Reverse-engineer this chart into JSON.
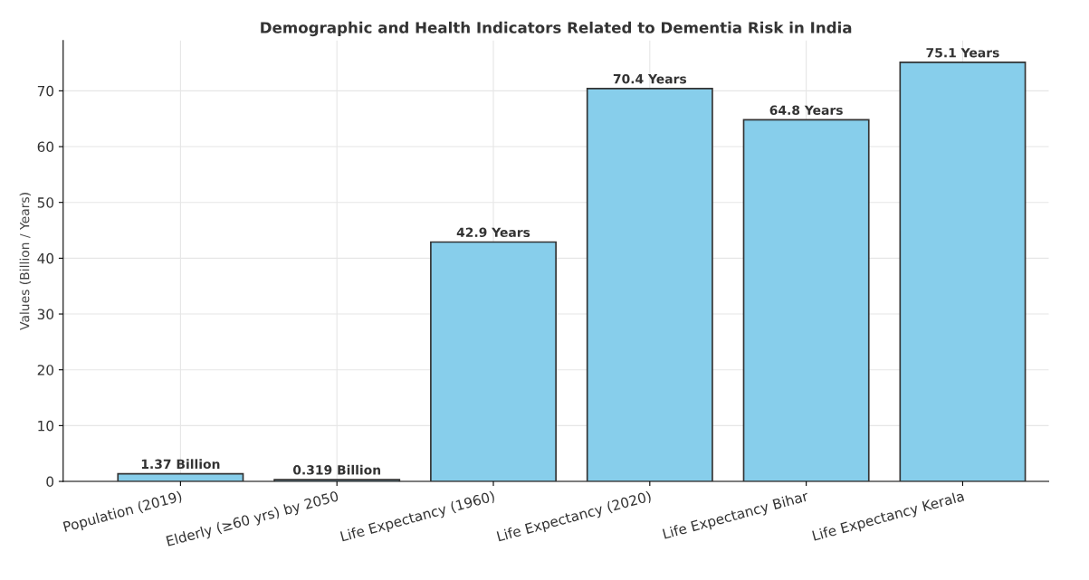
{
  "chart_data": {
    "type": "bar",
    "title": "Demographic and Health Indicators Related to Dementia Risk in India",
    "ylabel": "Values (Billion / Years)",
    "categories": [
      "Population (2019)",
      "Elderly (≥60 yrs) by 2050",
      "Life Expectancy (1960)",
      "Life Expectancy (2020)",
      "Life Expectancy Bihar",
      "Life Expectancy Kerala"
    ],
    "values": [
      1.37,
      0.319,
      42.9,
      70.4,
      64.8,
      75.1
    ],
    "value_labels": [
      "1.37 Billion",
      "0.319 Billion",
      "42.9 Years",
      "70.4 Years",
      "64.8 Years",
      "75.1 Years"
    ],
    "color": "#87ceeb",
    "ylim": [
      0,
      79
    ],
    "yticks": [
      0,
      10,
      20,
      30,
      40,
      50,
      60,
      70
    ],
    "grid": true
  }
}
